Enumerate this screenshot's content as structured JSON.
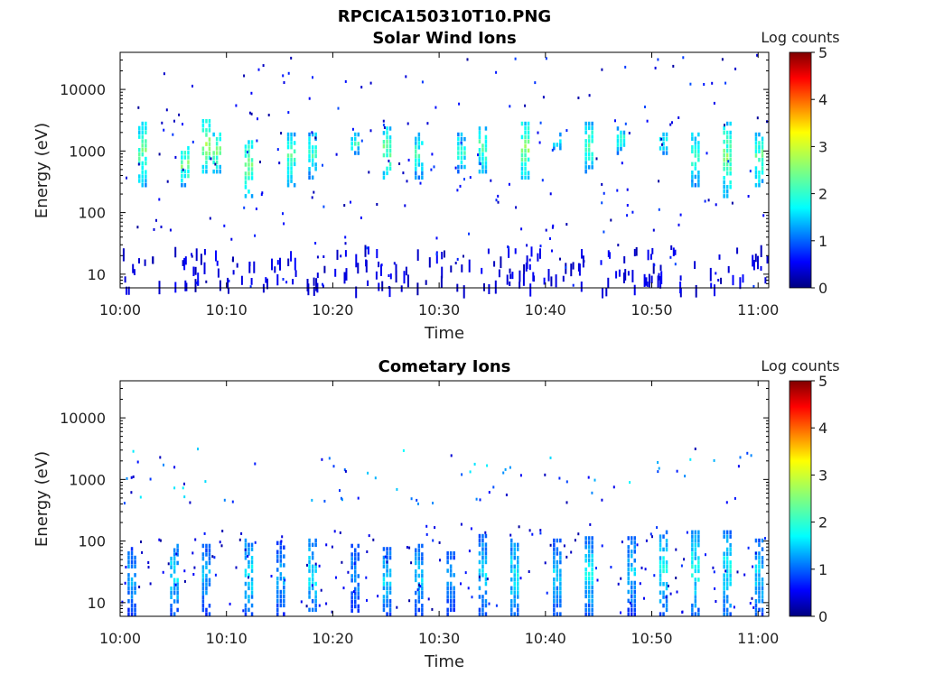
{
  "figure": {
    "title": "RPCICA150310T10.PNG"
  },
  "chart_data": [
    {
      "type": "heatmap",
      "title": "Solar Wind Ions",
      "xlabel": "Time",
      "ylabel": "Energy (eV)",
      "yscale": "log",
      "ylim": [
        6,
        40000
      ],
      "xlim": [
        "10:00",
        "11:01"
      ],
      "x_ticks": [
        "10:00",
        "10:10",
        "10:20",
        "10:30",
        "10:40",
        "10:50",
        "11:00"
      ],
      "y_ticks": [
        "10",
        "100",
        "1000",
        "10000"
      ],
      "colorbar": {
        "label": "Log counts",
        "range": [
          0,
          5
        ],
        "ticks": [
          "0",
          "1",
          "2",
          "3",
          "4",
          "5"
        ],
        "colormap": "jet"
      },
      "grid": false,
      "bursts": [
        {
          "t": "10:02",
          "energy_low": 300,
          "energy_high": 3000,
          "peak_log_counts": 2.7
        },
        {
          "t": "10:06",
          "energy_low": 300,
          "energy_high": 1200,
          "peak_log_counts": 2.8
        },
        {
          "t": "10:08",
          "energy_low": 500,
          "energy_high": 3300,
          "peak_log_counts": 3.0
        },
        {
          "t": "10:09",
          "energy_low": 500,
          "energy_high": 2000,
          "peak_log_counts": 2.9
        },
        {
          "t": "10:12",
          "energy_low": 200,
          "energy_high": 1500,
          "peak_log_counts": 2.9
        },
        {
          "t": "10:16",
          "energy_low": 300,
          "energy_high": 2000,
          "peak_log_counts": 2.5
        },
        {
          "t": "10:18",
          "energy_low": 400,
          "energy_high": 2000,
          "peak_log_counts": 2.4
        },
        {
          "t": "10:22",
          "energy_low": 1000,
          "energy_high": 2000,
          "peak_log_counts": 2.3
        },
        {
          "t": "10:25",
          "energy_low": 400,
          "energy_high": 2500,
          "peak_log_counts": 2.8
        },
        {
          "t": "10:28",
          "energy_low": 400,
          "energy_high": 2000,
          "peak_log_counts": 2.4
        },
        {
          "t": "10:32",
          "energy_low": 500,
          "energy_high": 2000,
          "peak_log_counts": 2.3
        },
        {
          "t": "10:34",
          "energy_low": 500,
          "energy_high": 2500,
          "peak_log_counts": 2.6
        },
        {
          "t": "10:38",
          "energy_low": 400,
          "energy_high": 3000,
          "peak_log_counts": 2.9
        },
        {
          "t": "10:41",
          "energy_low": 1200,
          "energy_high": 2000,
          "peak_log_counts": 2.2
        },
        {
          "t": "10:44",
          "energy_low": 500,
          "energy_high": 3000,
          "peak_log_counts": 2.5
        },
        {
          "t": "10:47",
          "energy_low": 1000,
          "energy_high": 2500,
          "peak_log_counts": 2.2
        },
        {
          "t": "10:51",
          "energy_low": 1000,
          "energy_high": 2000,
          "peak_log_counts": 2.2
        },
        {
          "t": "10:54",
          "energy_low": 300,
          "energy_high": 2000,
          "peak_log_counts": 2.5
        },
        {
          "t": "10:57",
          "energy_low": 200,
          "energy_high": 3000,
          "peak_log_counts": 2.8
        },
        {
          "t": "11:00",
          "energy_low": 300,
          "energy_high": 2000,
          "peak_log_counts": 2.7
        }
      ],
      "low_energy_band": {
        "energy_low": 6,
        "energy_high": 30,
        "peak_log_counts": 0.6
      }
    },
    {
      "type": "heatmap",
      "title": "Cometary Ions",
      "xlabel": "Time",
      "ylabel": "Energy (eV)",
      "yscale": "log",
      "ylim": [
        6,
        40000
      ],
      "xlim": [
        "10:00",
        "11:01"
      ],
      "x_ticks": [
        "10:00",
        "10:10",
        "10:20",
        "10:30",
        "10:40",
        "10:50",
        "11:00"
      ],
      "y_ticks": [
        "10",
        "100",
        "1000",
        "10000"
      ],
      "colorbar": {
        "label": "Log counts",
        "range": [
          0,
          5
        ],
        "ticks": [
          "0",
          "1",
          "2",
          "3",
          "4",
          "5"
        ],
        "colormap": "jet"
      },
      "grid": false,
      "bursts": [
        {
          "t": "10:01",
          "energy_low": 7,
          "energy_high": 80,
          "peak_log_counts": 1.6
        },
        {
          "t": "10:05",
          "energy_low": 7,
          "energy_high": 90,
          "peak_log_counts": 1.9
        },
        {
          "t": "10:08",
          "energy_low": 7,
          "energy_high": 90,
          "peak_log_counts": 1.6
        },
        {
          "t": "10:12",
          "energy_low": 7,
          "energy_high": 110,
          "peak_log_counts": 1.9
        },
        {
          "t": "10:15",
          "energy_low": 7,
          "energy_high": 100,
          "peak_log_counts": 1.6
        },
        {
          "t": "10:18",
          "energy_low": 7,
          "energy_high": 110,
          "peak_log_counts": 1.9
        },
        {
          "t": "10:22",
          "energy_low": 8,
          "energy_high": 90,
          "peak_log_counts": 1.5
        },
        {
          "t": "10:25",
          "energy_low": 7,
          "energy_high": 80,
          "peak_log_counts": 1.8
        },
        {
          "t": "10:28",
          "energy_low": 7,
          "energy_high": 90,
          "peak_log_counts": 1.7
        },
        {
          "t": "10:31",
          "energy_low": 7,
          "energy_high": 80,
          "peak_log_counts": 1.5
        },
        {
          "t": "10:34",
          "energy_low": 7,
          "energy_high": 130,
          "peak_log_counts": 1.8
        },
        {
          "t": "10:37",
          "energy_low": 7,
          "energy_high": 110,
          "peak_log_counts": 1.9
        },
        {
          "t": "10:41",
          "energy_low": 7,
          "energy_high": 110,
          "peak_log_counts": 1.7
        },
        {
          "t": "10:44",
          "energy_low": 7,
          "energy_high": 120,
          "peak_log_counts": 1.9
        },
        {
          "t": "10:48",
          "energy_low": 7,
          "energy_high": 120,
          "peak_log_counts": 1.7
        },
        {
          "t": "10:51",
          "energy_low": 7,
          "energy_high": 150,
          "peak_log_counts": 2.0
        },
        {
          "t": "10:54",
          "energy_low": 7,
          "energy_high": 150,
          "peak_log_counts": 2.1
        },
        {
          "t": "10:57",
          "energy_low": 7,
          "energy_high": 150,
          "peak_log_counts": 2.0
        },
        {
          "t": "11:00",
          "energy_low": 7,
          "energy_high": 110,
          "peak_log_counts": 1.8
        }
      ],
      "solar_wind_traces": {
        "energy_low": 400,
        "energy_high": 3300,
        "peak_log_counts": 1.5
      }
    }
  ]
}
